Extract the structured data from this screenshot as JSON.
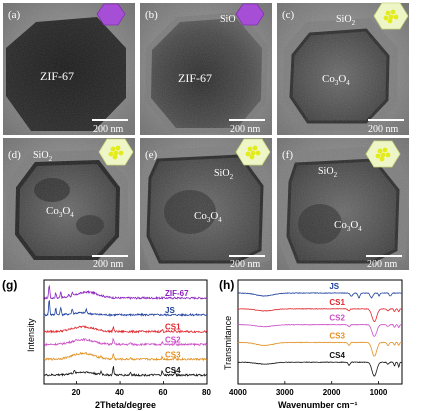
{
  "panels": [
    {
      "letter": "(a)",
      "label": "ZIF-67",
      "scale": "200 nm",
      "icon": "purple-hexagon-icon"
    },
    {
      "letter": "(b)",
      "label": "ZIF-67",
      "shell": "SiO2",
      "scale": "200 nm",
      "icon": "purple-hexagon-icon"
    },
    {
      "letter": "(c)",
      "label": "Co3O4",
      "shell": "SiO2",
      "scale": "200 nm",
      "icon": "yellow-nanocluster-icon"
    },
    {
      "letter": "(d)",
      "label": "Co3O4",
      "shell": "SiO2",
      "scale": "200 nm",
      "icon": "yellow-nanocluster-icon"
    },
    {
      "letter": "(e)",
      "label": "Co3O4",
      "shell": "SiO2",
      "scale": "200 nm",
      "icon": "yellow-nanocluster-icon"
    },
    {
      "letter": "(f)",
      "label": "Co3O4",
      "shell": "SiO2",
      "scale": "200 nm",
      "icon": "yellow-nanocluster-icon"
    }
  ],
  "chart_data": [
    {
      "panel": "(g)",
      "type": "line",
      "xlabel": "2Theta/degree",
      "ylabel": "Intensity",
      "xlim": [
        5,
        80
      ],
      "xticks": [
        20,
        40,
        60,
        80
      ],
      "yticks": "none",
      "legend": "inline labels, right",
      "series": [
        {
          "name": "ZIF-67",
          "color": "#8a1fbd",
          "label_color": "#8a1fbd",
          "baseline": 0.83,
          "peaks": [
            [
              7.4,
              0.14
            ],
            [
              10.4,
              0.05
            ],
            [
              12.7,
              0.07
            ],
            [
              16.4,
              0.03
            ],
            [
              18.0,
              0.03
            ]
          ],
          "hump": [
            25,
            0.06,
            7
          ]
        },
        {
          "name": "JS",
          "color": "#1c3f9e",
          "label_color": "#1c3f9e",
          "baseline": 0.66,
          "peaks": [
            [
              7.4,
              0.16
            ],
            [
              10.4,
              0.07
            ],
            [
              12.7,
              0.08
            ],
            [
              18.0,
              0.05
            ],
            [
              24.4,
              0.04
            ]
          ],
          "hump": [
            22,
            0.02,
            6
          ]
        },
        {
          "name": "CS1",
          "color": "#e0262c",
          "label_color": "#e0262c",
          "baseline": 0.49,
          "peaks": [
            [
              36.9,
              0.05
            ],
            [
              59.4,
              0.02
            ],
            [
              65.3,
              0.02
            ]
          ],
          "hump": [
            23,
            0.05,
            7
          ]
        },
        {
          "name": "CS2",
          "color": "#cc4fc6",
          "label_color": "#cc4fc6",
          "baseline": 0.36,
          "peaks": [
            [
              36.9,
              0.06
            ],
            [
              44.8,
              0.02
            ],
            [
              59.4,
              0.02
            ],
            [
              65.3,
              0.03
            ]
          ],
          "hump": [
            23,
            0.05,
            7
          ]
        },
        {
          "name": "CS3",
          "color": "#e2901f",
          "label_color": "#e2901f",
          "baseline": 0.21,
          "peaks": [
            [
              31.3,
              0.02
            ],
            [
              36.9,
              0.06
            ],
            [
              44.8,
              0.02
            ],
            [
              59.4,
              0.03
            ],
            [
              65.3,
              0.03
            ]
          ],
          "hump": [
            23,
            0.06,
            7
          ]
        },
        {
          "name": "CS4",
          "color": "#111111",
          "label_color": "#111111",
          "baseline": 0.05,
          "peaks": [
            [
              19.0,
              0.02
            ],
            [
              31.3,
              0.03
            ],
            [
              36.9,
              0.09
            ],
            [
              44.8,
              0.03
            ],
            [
              59.4,
              0.04
            ],
            [
              65.3,
              0.05
            ]
          ],
          "hump": [
            23,
            0.03,
            7
          ]
        }
      ]
    },
    {
      "panel": "(h)",
      "type": "line",
      "xlabel": "Wavenumber cm⁻¹",
      "ylabel": "Transmitance",
      "xlim": [
        4000,
        500
      ],
      "reversed_x": true,
      "xticks": [
        4000,
        3000,
        2000,
        1000
      ],
      "yticks": "none",
      "legend": "inline labels, top-right",
      "series": [
        {
          "name": "JS",
          "color": "#1c3f9e",
          "label_color": "#1c3f9e",
          "baseline": 0.88,
          "dips": [
            [
              3430,
              0.03,
              250
            ],
            [
              1580,
              0.03,
              40
            ],
            [
              1420,
              0.05,
              30
            ],
            [
              1150,
              0.05,
              40
            ],
            [
              990,
              0.03,
              20
            ],
            [
              750,
              0.03,
              30
            ]
          ]
        },
        {
          "name": "CS1",
          "color": "#e0262c",
          "label_color": "#e0262c",
          "baseline": 0.72,
          "dips": [
            [
              3430,
              0.02,
              250
            ],
            [
              1630,
              0.02,
              30
            ],
            [
              1090,
              0.13,
              70
            ],
            [
              800,
              0.02,
              30
            ],
            [
              660,
              0.03,
              20
            ],
            [
              570,
              0.03,
              20
            ]
          ]
        },
        {
          "name": "CS2",
          "color": "#cc4fc6",
          "label_color": "#cc4fc6",
          "baseline": 0.56,
          "dips": [
            [
              3430,
              0.02,
              250
            ],
            [
              1630,
              0.02,
              30
            ],
            [
              1090,
              0.12,
              70
            ],
            [
              800,
              0.02,
              30
            ],
            [
              660,
              0.03,
              20
            ],
            [
              570,
              0.03,
              20
            ]
          ]
        },
        {
          "name": "CS3",
          "color": "#e2901f",
          "label_color": "#e2901f",
          "baseline": 0.38,
          "dips": [
            [
              3430,
              0.03,
              250
            ],
            [
              1630,
              0.03,
              30
            ],
            [
              1090,
              0.14,
              70
            ],
            [
              800,
              0.03,
              30
            ],
            [
              660,
              0.03,
              20
            ],
            [
              570,
              0.03,
              20
            ]
          ]
        },
        {
          "name": "CS4",
          "color": "#111111",
          "label_color": "#111111",
          "baseline": 0.18,
          "dips": [
            [
              3430,
              0.02,
              250
            ],
            [
              1630,
              0.03,
              30
            ],
            [
              1090,
              0.14,
              70
            ],
            [
              800,
              0.02,
              30
            ],
            [
              660,
              0.04,
              20
            ],
            [
              570,
              0.05,
              20
            ]
          ]
        }
      ]
    }
  ]
}
